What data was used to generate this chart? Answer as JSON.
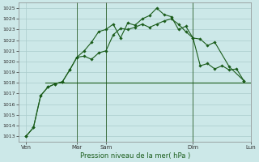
{
  "xlabel": "Pression niveau de la mer( hPa )",
  "ylim": [
    1012.5,
    1025.5
  ],
  "xlim": [
    0,
    16
  ],
  "bg_color": "#cce8e8",
  "grid_color": "#aacccc",
  "line_color": "#1a5c1a",
  "line_color2": "#2d7a2d",
  "vline_positions": [
    4.0,
    6.0,
    12.0,
    16.0
  ],
  "xtick_positions": [
    0.5,
    4.0,
    6.0,
    12.0,
    16.0
  ],
  "xtick_labels": [
    "Ven",
    "Mar",
    "Sam",
    "Dim",
    "Lun"
  ],
  "line1_x": [
    0.5,
    1.0,
    1.5,
    2.0,
    2.5,
    3.0,
    3.5,
    4.0,
    4.5,
    5.0,
    5.5,
    6.0,
    6.5,
    7.0,
    7.5,
    8.0,
    8.5,
    9.0,
    9.5,
    10.0,
    10.5,
    11.0,
    11.5,
    12.0,
    12.5,
    13.0,
    13.5,
    14.0,
    14.5,
    15.0,
    15.5
  ],
  "line1_y": [
    1013.0,
    1013.8,
    1016.8,
    1017.6,
    1017.9,
    1018.1,
    1019.2,
    1020.4,
    1021.0,
    1021.8,
    1022.8,
    1023.0,
    1023.5,
    1022.2,
    1023.6,
    1023.4,
    1024.0,
    1024.3,
    1025.0,
    1024.4,
    1024.2,
    1023.0,
    1023.3,
    1022.2,
    1019.6,
    1019.8,
    1019.3,
    1019.6,
    1019.2,
    1019.3,
    1018.2
  ],
  "line2_x": [
    0.5,
    1.0,
    1.5,
    2.0,
    2.5,
    3.0,
    3.5,
    4.0,
    4.5,
    5.0,
    5.5,
    6.0,
    6.5,
    7.0,
    7.5,
    8.0,
    8.5,
    9.0,
    9.5,
    10.0,
    10.5,
    11.0,
    11.5,
    12.0,
    12.5,
    13.0,
    13.5,
    14.5,
    15.5
  ],
  "line2_y": [
    1013.0,
    1013.8,
    1016.8,
    1017.6,
    1017.9,
    1018.1,
    1019.2,
    1020.4,
    1020.5,
    1020.2,
    1020.8,
    1021.0,
    1022.5,
    1023.1,
    1023.0,
    1023.2,
    1023.5,
    1023.2,
    1023.5,
    1023.8,
    1024.0,
    1023.5,
    1022.8,
    1022.2,
    1022.1,
    1021.5,
    1021.8,
    1019.5,
    1018.2
  ],
  "line3_x": [
    1.8,
    16.0
  ],
  "line3_y": [
    1018.0,
    1018.0
  ],
  "figsize": [
    3.2,
    2.0
  ],
  "dpi": 100
}
